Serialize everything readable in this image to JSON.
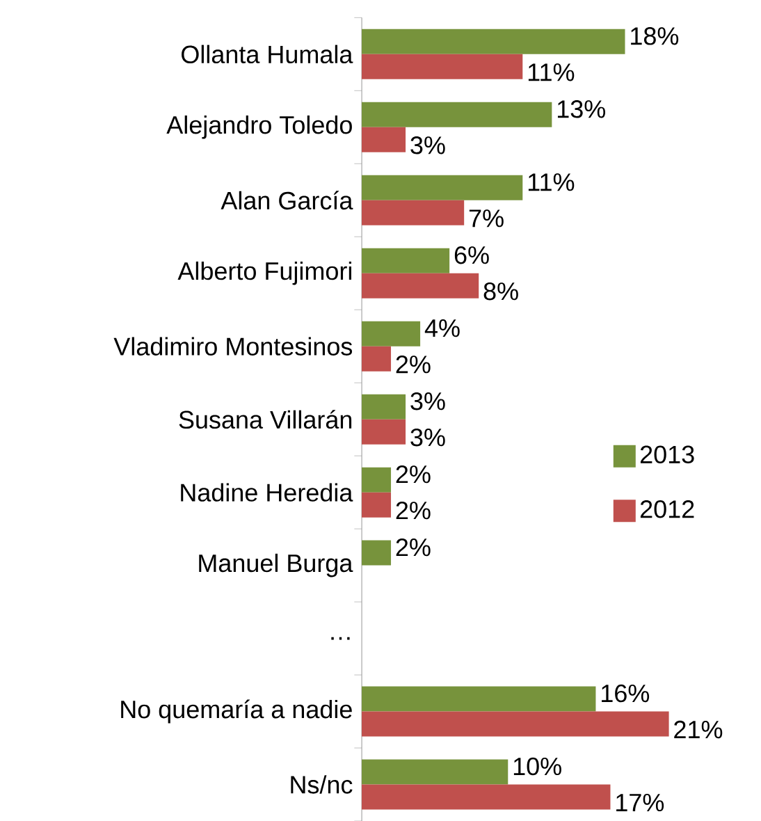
{
  "chart_data": {
    "type": "bar",
    "orientation": "horizontal",
    "categories": [
      "Ollanta Humala",
      "Alejandro Toledo",
      "Alan García",
      "Alberto Fujimori",
      "Vladimiro Montesinos",
      "Susana Villarán",
      "Nadine Heredia",
      "Manuel Burga",
      "…",
      "No quemaría a nadie",
      "Ns/nc"
    ],
    "series": [
      {
        "name": "2013",
        "color": "#77933c",
        "values": [
          18,
          13,
          11,
          6,
          4,
          3,
          2,
          2,
          null,
          16,
          10
        ],
        "value_labels": [
          "18%",
          "13%",
          "11%",
          "6%",
          "4%",
          "3%",
          "2%",
          "2%",
          null,
          "16%",
          "10%"
        ]
      },
      {
        "name": "2012",
        "color": "#c0504d",
        "values": [
          11,
          3,
          7,
          8,
          2,
          3,
          2,
          null,
          null,
          21,
          17
        ],
        "value_labels": [
          "11%",
          "3%",
          "7%",
          "8%",
          "2%",
          "3%",
          "2%",
          null,
          null,
          "21%",
          "17%"
        ]
      }
    ],
    "legend": "right"
  }
}
